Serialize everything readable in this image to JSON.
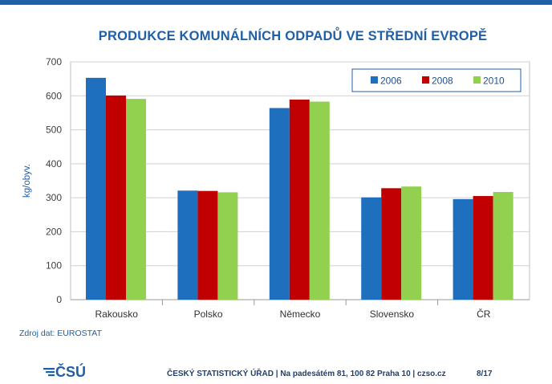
{
  "slide": {
    "title": "PRODUKCE KOMUNÁLNÍCH ODPADŮ VE STŘEDNÍ EVROPĚ",
    "source_note": "Zdroj dat: EUROSTAT",
    "footer": {
      "logo_text": "ČSÚ",
      "text": "ČESKÝ STATISTICKÝ ÚŘAD  |  Na padesátém 81, 100 82 Praha 10  |  czso.cz",
      "page": "8/17"
    }
  },
  "colors": {
    "accent": "#1f5fa8",
    "series": [
      "#1f6fbf",
      "#c00000",
      "#92d050"
    ]
  },
  "chart_data": {
    "type": "bar",
    "title": "PRODUKCE KOMUNÁLNÍCH ODPADŮ VE STŘEDNÍ EVROPĚ",
    "xlabel": "",
    "ylabel": "kg/obyv.",
    "ylim": [
      0,
      700
    ],
    "yticks": [
      0,
      100,
      200,
      300,
      400,
      500,
      600,
      700
    ],
    "grid": true,
    "legend": "top-right",
    "categories": [
      "Rakousko",
      "Polsko",
      "Německo",
      "Slovensko",
      "ČR"
    ],
    "series": [
      {
        "name": "2006",
        "values": [
          653,
          321,
          564,
          301,
          296
        ]
      },
      {
        "name": "2008",
        "values": [
          601,
          320,
          589,
          328,
          305
        ]
      },
      {
        "name": "2010",
        "values": [
          591,
          316,
          583,
          333,
          317
        ]
      }
    ]
  }
}
